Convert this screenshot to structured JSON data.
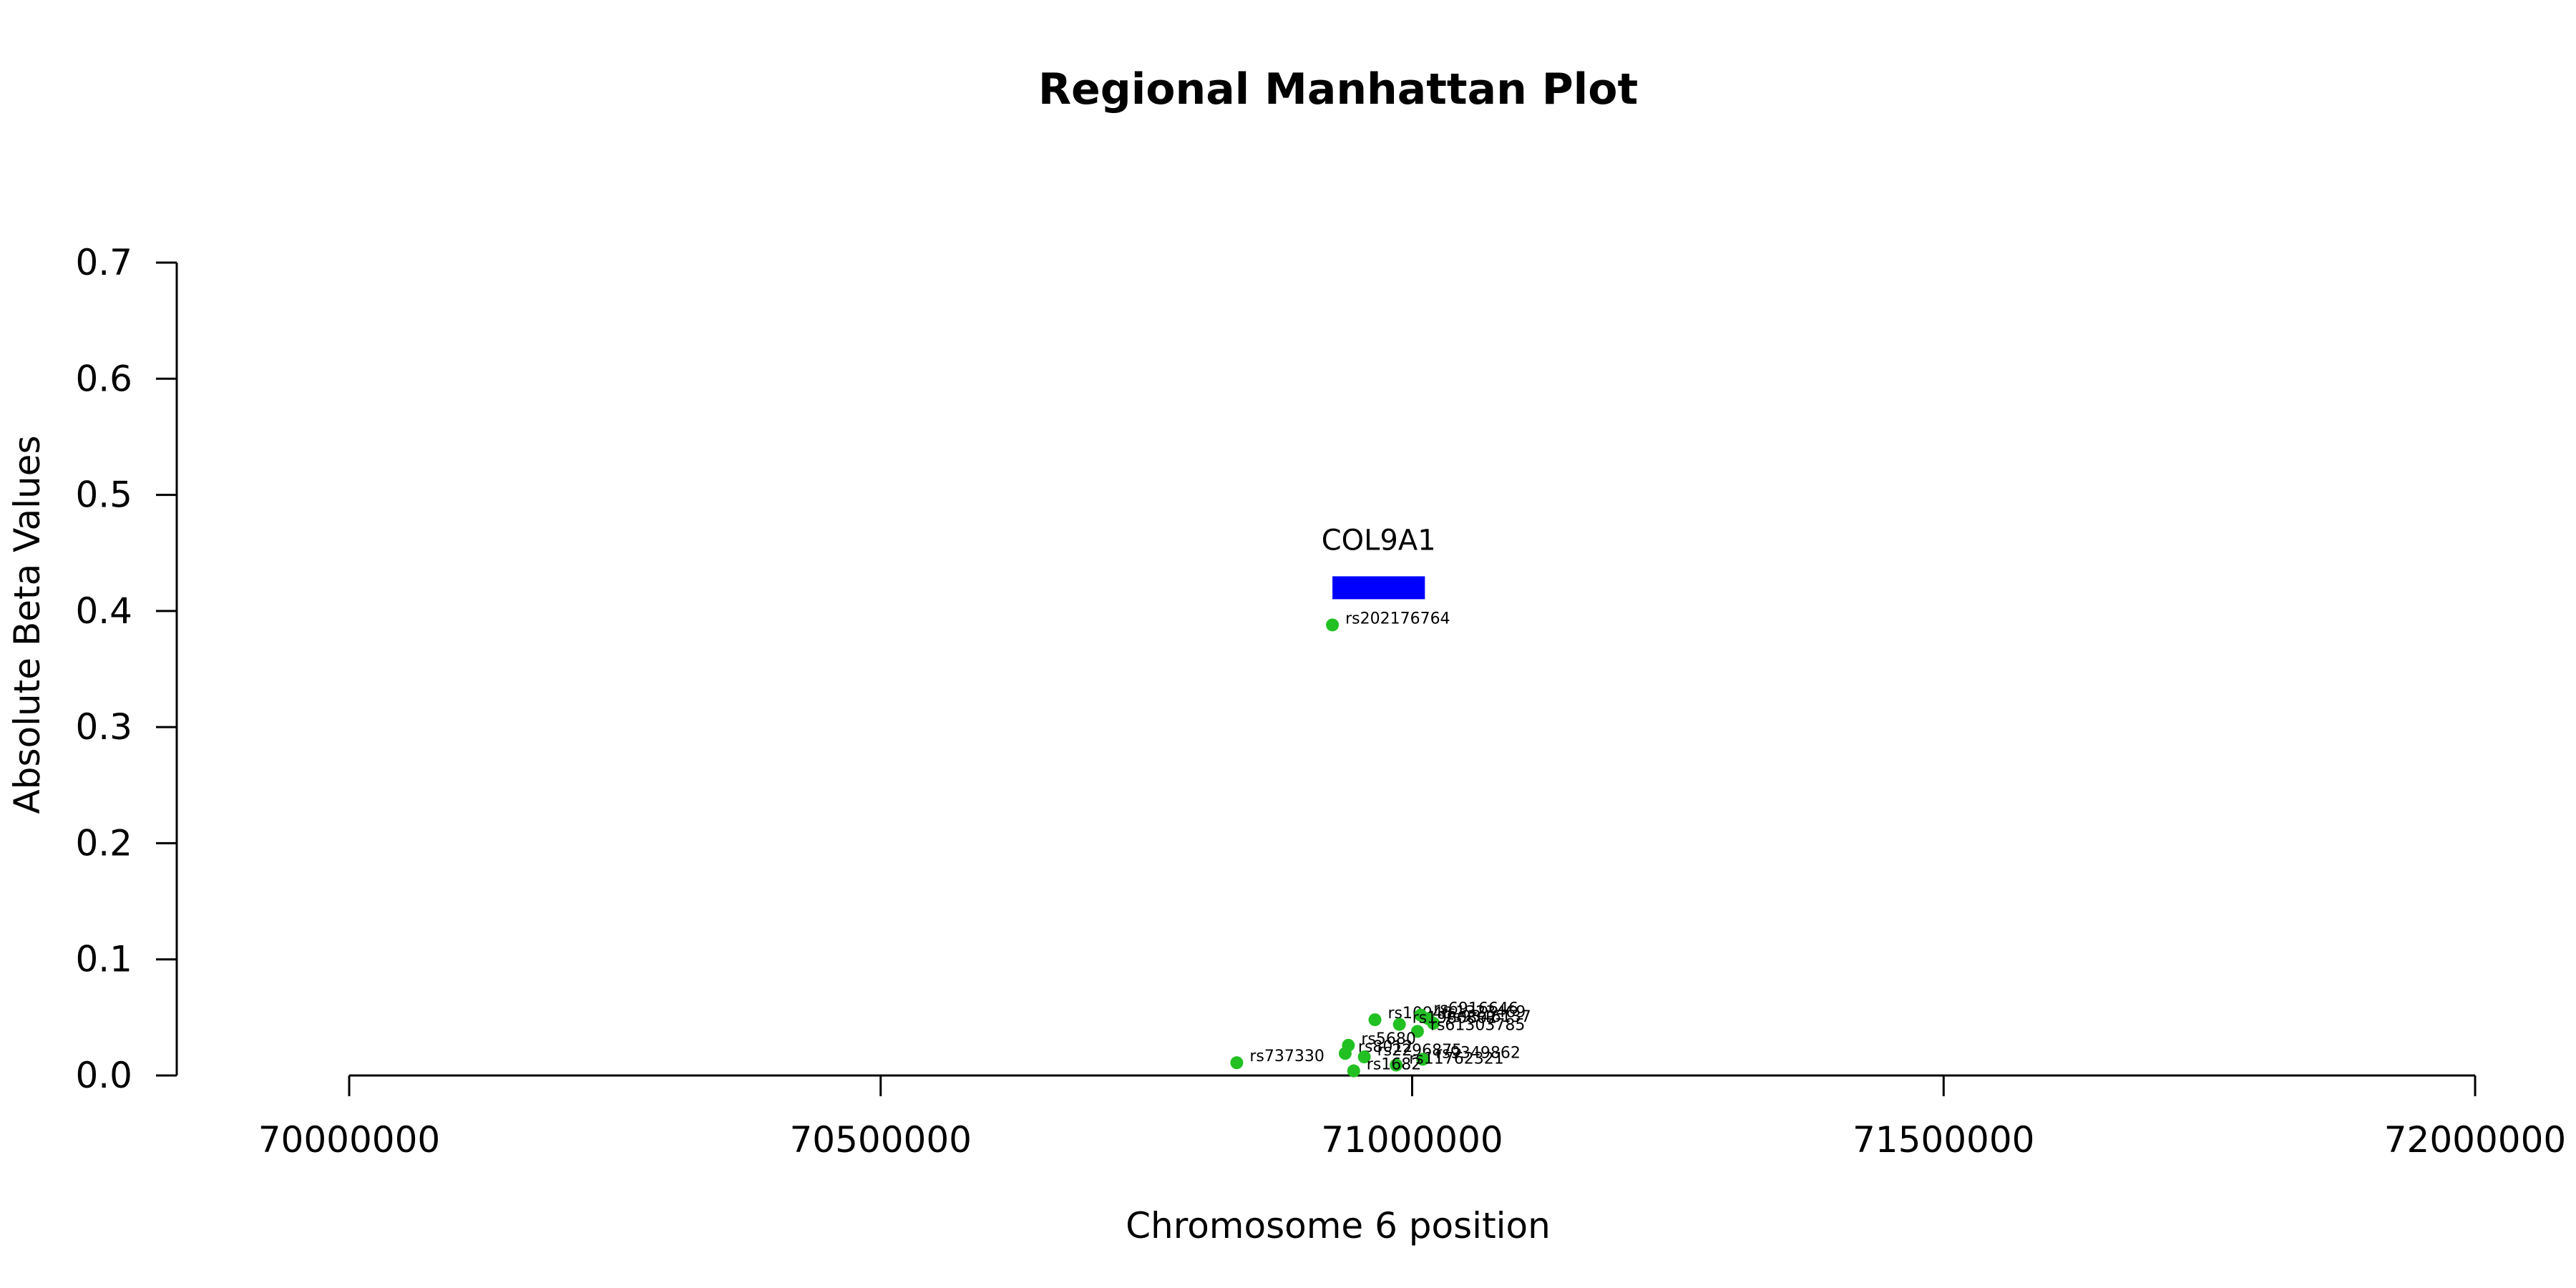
{
  "chart_data": {
    "type": "scatter",
    "title": "Regional Manhattan Plot",
    "xlabel": "Chromosome 6 position",
    "ylabel": "Absolute Beta Values",
    "xlim": [
      70000000,
      72000000
    ],
    "ylim": [
      0,
      0.7
    ],
    "x_ticks": [
      70000000,
      70500000,
      71000000,
      71500000,
      72000000
    ],
    "x_tick_labels": [
      "70000000",
      "70500000",
      "71000000",
      "71500000",
      "72000000"
    ],
    "y_ticks": [
      0,
      0.1,
      0.2,
      0.3,
      0.4,
      0.5,
      0.6,
      0.7
    ],
    "y_tick_labels": [
      "0.0",
      "0.1",
      "0.2",
      "0.3",
      "0.4",
      "0.5",
      "0.6",
      "0.7"
    ],
    "grid": false,
    "legend": "none",
    "point_color": "#22c022",
    "gene_color": "#0000ff",
    "genes": [
      {
        "name": "COL9A1",
        "start": 70925000,
        "end": 71012000,
        "y": 0.42
      }
    ],
    "points": [
      {
        "label": "rs202176764",
        "x": 70925000,
        "y": 0.388
      },
      {
        "label": "rs737330",
        "x": 70835000,
        "y": 0.011
      },
      {
        "label": "rs10945",
        "x": 70965000,
        "y": 0.048
      },
      {
        "label": "rs6916646",
        "x": 71008000,
        "y": 0.052
      },
      {
        "label": "rs1323469",
        "x": 71015000,
        "y": 0.049
      },
      {
        "label": "rs9346137",
        "x": 71020000,
        "y": 0.045
      },
      {
        "label": "rs1980802",
        "x": 70988000,
        "y": 0.044
      },
      {
        "label": "rs61303785",
        "x": 71005000,
        "y": 0.038
      },
      {
        "label": "rs5680",
        "x": 70940000,
        "y": 0.026
      },
      {
        "label": "rs8012",
        "x": 70937000,
        "y": 0.019
      },
      {
        "label": "rs2296875",
        "x": 70955000,
        "y": 0.016
      },
      {
        "label": "rs9349862",
        "x": 71010000,
        "y": 0.014
      },
      {
        "label": "rs11762321",
        "x": 70985000,
        "y": 0.009
      },
      {
        "label": "rs1682",
        "x": 70945000,
        "y": 0.004
      }
    ]
  }
}
